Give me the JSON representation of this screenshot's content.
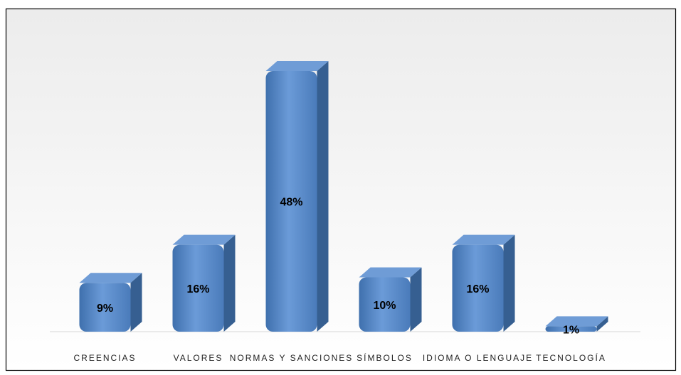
{
  "chart_data": {
    "type": "bar3d",
    "categories": [
      "CREENCIAS",
      "VALORES",
      "NORMAS Y SANCIONES",
      "SÍMBOLOS",
      "IDIOMA O LENGUAJE",
      "TECNOLOGÍA"
    ],
    "values": [
      9,
      16,
      48,
      10,
      16,
      1
    ],
    "value_labels": [
      "9%",
      "16%",
      "48%",
      "10%",
      "16%",
      "1%"
    ],
    "color": "#4f81bd"
  }
}
